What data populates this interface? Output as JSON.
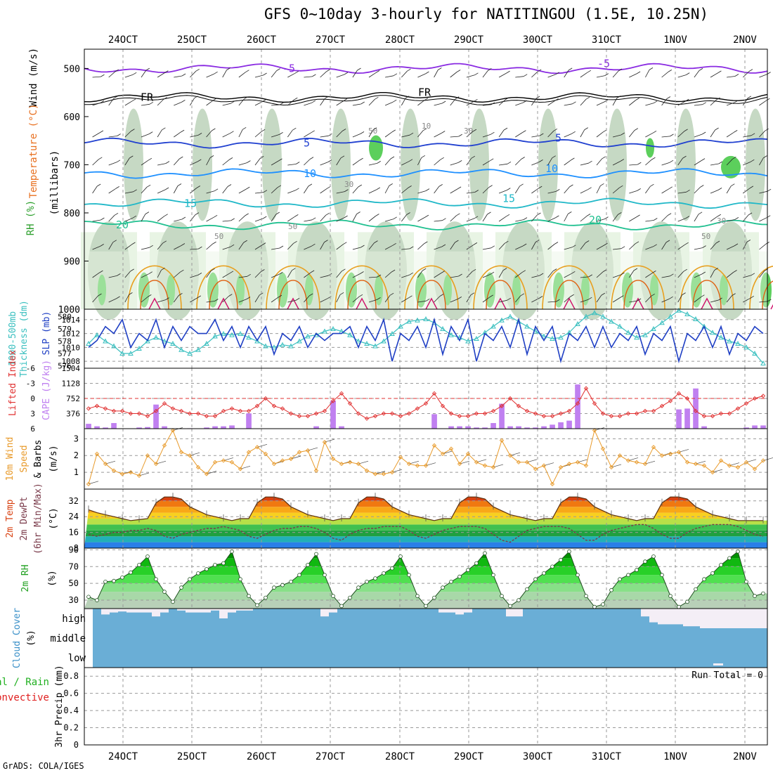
{
  "title": "GFS 0~10day 3-hourly for NATITINGOU (1.5E, 10.25N)",
  "credit": "GrADS: COLA/IGES",
  "date_labels": [
    "24OCT",
    "25OCT",
    "26OCT",
    "27OCT",
    "28OCT",
    "29OCT",
    "30OCT",
    "31OCT",
    "1NOV",
    "2NOV"
  ],
  "colors": {
    "rh_light": "#e8f4e4",
    "rh_mid": "#c6d9c4",
    "rh_dark": "#aec4ae",
    "rh_green": "#5ccf5c",
    "slp": "#1f3fc4",
    "thickness": "#3cc0c0",
    "lifted": "#e03030",
    "cape": "#c080f0",
    "wind10m": "#e89a2a",
    "cloud": "#6aaed6",
    "cloud_gap": "#f4eef6"
  },
  "chart_data": [
    {
      "id": "upper",
      "type": "heatmap",
      "ylabels": [
        "Wind (m/s)",
        "Temperature (°C)",
        "RH (%)",
        "(millibars)"
      ],
      "y_ticks": [
        500,
        600,
        700,
        800,
        900,
        1000
      ],
      "ylim": [
        460,
        1000
      ],
      "temperature_contours": [
        {
          "label": "-5",
          "pressure": 500,
          "color": "#8a2be2"
        },
        {
          "label": "FR",
          "pressure": 560,
          "color": "#000000"
        },
        {
          "label": "5",
          "pressure": 655,
          "color": "#2040d0"
        },
        {
          "label": "10",
          "pressure": 718,
          "color": "#1e90ff"
        },
        {
          "label": "15",
          "pressure": 780,
          "color": "#20b8c8"
        },
        {
          "label": "20",
          "pressure": 825,
          "color": "#20c090"
        }
      ],
      "rh_labels": [
        "50",
        "10",
        "30",
        "50",
        "50",
        "30",
        "30",
        "50"
      ]
    },
    {
      "id": "slp",
      "type": "line",
      "ylabels": [
        "1000-500mb",
        "Thickness (dm)",
        "SLP (mb)"
      ],
      "left_ticks": [
        576,
        577,
        578,
        579,
        580
      ],
      "right_ticks": [
        1008,
        1010,
        1012,
        1014
      ],
      "slp_ylim": [
        1007,
        1015.5
      ],
      "thick_ylim": [
        575.8,
        580.6
      ],
      "slp": [
        1010,
        1011,
        1013,
        1012,
        1014,
        1010,
        1012,
        1011,
        1014,
        1010,
        1013,
        1011,
        1013,
        1012,
        1012,
        1014,
        1011,
        1013,
        1010,
        1013,
        1011,
        1013,
        1009,
        1012,
        1011,
        1013,
        1010,
        1012,
        1011,
        1012,
        1012,
        1013,
        1010,
        1013,
        1011,
        1014,
        1008,
        1012,
        1011,
        1013,
        1010,
        1014,
        1009,
        1013,
        1011,
        1014,
        1008,
        1012,
        1011,
        1013,
        1010,
        1014,
        1009,
        1013,
        1011,
        1013,
        1008,
        1012,
        1011,
        1013,
        1010,
        1013,
        1010,
        1012,
        1011,
        1013,
        1009,
        1012,
        1011,
        1013,
        1008,
        1012,
        1011,
        1013,
        1010,
        1013,
        1009,
        1012,
        1011,
        1013,
        1012
      ],
      "thickness": [
        577.8,
        578.5,
        578.0,
        577.6,
        577.0,
        577.0,
        577.4,
        578.0,
        578.3,
        578.0,
        577.8,
        577.3,
        577.0,
        577.3,
        577.8,
        578.4,
        578.6,
        578.5,
        578.6,
        578.3,
        578.0,
        577.6,
        577.5,
        577.7,
        577.6,
        578.0,
        578.4,
        578.5,
        578.8,
        579.0,
        578.8,
        578.5,
        578.0,
        577.8,
        577.6,
        578.0,
        578.6,
        579.2,
        579.6,
        579.7,
        579.8,
        579.5,
        579.0,
        578.5,
        578.3,
        578.0,
        578.2,
        578.7,
        579.2,
        579.7,
        580.0,
        579.6,
        579.2,
        578.8,
        578.4,
        578.2,
        578.3,
        578.7,
        579.4,
        580.0,
        580.3,
        580.0,
        579.6,
        579.2,
        578.7,
        578.3,
        578.5,
        579.0,
        579.5,
        580.0,
        580.5,
        580.2,
        579.8,
        579.2,
        578.7,
        578.3,
        578.0,
        577.8,
        577.5,
        577.0,
        576.2
      ]
    },
    {
      "id": "cape",
      "type": "bar",
      "ylabels": [
        "Lifted Index",
        "CAPE (J/kg)"
      ],
      "left_ticks": [
        "-6",
        "-3",
        "0",
        "3",
        "6"
      ],
      "right_ticks": [
        "1504",
        "1128",
        "752",
        "376"
      ],
      "cape_ylim": [
        0,
        1504
      ],
      "li_ylim": [
        -6,
        6
      ],
      "cape": [
        120,
        60,
        30,
        140,
        0,
        0,
        30,
        40,
        600,
        60,
        0,
        0,
        10,
        0,
        30,
        60,
        60,
        80,
        0,
        380,
        0,
        0,
        0,
        0,
        0,
        0,
        0,
        60,
        0,
        700,
        60,
        0,
        0,
        0,
        0,
        0,
        0,
        0,
        0,
        0,
        0,
        360,
        0,
        60,
        60,
        60,
        30,
        30,
        140,
        620,
        60,
        60,
        30,
        30,
        60,
        100,
        160,
        200,
        1100,
        0,
        0,
        0,
        0,
        0,
        0,
        0,
        0,
        0,
        0,
        0,
        480,
        500,
        1000,
        60,
        0,
        0,
        0,
        0,
        30,
        80,
        80
      ],
      "lifted_index": [
        2.0,
        1.5,
        2.0,
        2.5,
        2.5,
        3.0,
        3.0,
        3.5,
        2.5,
        1.0,
        2.0,
        2.5,
        3.0,
        3.0,
        3.5,
        3.5,
        2.5,
        2.0,
        2.5,
        2.5,
        1.5,
        0,
        1.5,
        2.0,
        3.0,
        3.5,
        3.5,
        3.0,
        2.5,
        0.5,
        -1.0,
        1.0,
        3.0,
        4.0,
        3.5,
        3.0,
        3.0,
        3.5,
        3.0,
        2.0,
        1.0,
        -1.0,
        1.5,
        3.0,
        3.5,
        3.5,
        3.0,
        3.0,
        2.5,
        1.5,
        0,
        1.5,
        2.5,
        3.0,
        3.5,
        3.5,
        3.0,
        2.5,
        1.0,
        -2.0,
        1.0,
        3.0,
        3.5,
        3.5,
        3.0,
        3.0,
        2.5,
        2.5,
        1.5,
        0.5,
        -1.0,
        0,
        2.5,
        3.5,
        3.5,
        3.0,
        3.0,
        2.0,
        1.0,
        0,
        -0.5
      ],
      "li_reference": 0
    },
    {
      "id": "wind10m",
      "type": "line",
      "ylabels": [
        "10m Wind",
        "Speed",
        "& Barbs",
        "(m/s)"
      ],
      "y_ticks": [
        1,
        2,
        3
      ],
      "ylim": [
        0,
        3.6
      ],
      "speed": [
        0.3,
        2.1,
        1.5,
        1.1,
        0.9,
        1.0,
        0.8,
        2.0,
        1.5,
        2.6,
        3.5,
        2.2,
        2.0,
        1.3,
        0.9,
        1.6,
        1.7,
        1.6,
        1.2,
        2.2,
        2.5,
        2.1,
        1.5,
        1.7,
        1.8,
        2.2,
        2.3,
        1.1,
        2.8,
        1.8,
        1.5,
        1.6,
        1.5,
        1.1,
        0.9,
        0.9,
        1.0,
        1.9,
        1.5,
        1.4,
        1.4,
        2.6,
        2.1,
        2.4,
        1.5,
        2.1,
        1.6,
        1.4,
        1.3,
        2.9,
        2.0,
        1.6,
        1.6,
        1.2,
        1.4,
        0.3,
        1.3,
        1.5,
        1.6,
        1.4,
        3.5,
        2.4,
        1.3,
        2.0,
        1.7,
        1.6,
        1.5,
        2.5,
        2.0,
        2.1,
        2.2,
        1.6,
        1.5,
        1.4,
        1.0,
        1.7,
        1.4,
        1.3,
        1.6,
        1.2,
        1.7
      ]
    },
    {
      "id": "temp2m",
      "type": "area",
      "ylabels": [
        "2m Temp",
        "2m DewPt",
        "(6hr Min/Max)",
        "(°C)"
      ],
      "y_ticks": [
        8,
        16,
        24,
        32
      ],
      "ylim": [
        8,
        38
      ],
      "temperature": [
        27.5,
        26,
        25,
        24,
        23,
        22,
        22.5,
        23,
        31,
        34,
        34,
        33,
        29,
        27,
        25,
        24,
        23,
        22,
        23,
        23,
        31,
        34,
        34,
        33,
        29,
        27,
        25,
        24,
        23,
        22,
        23,
        23,
        31,
        34,
        34,
        33,
        29,
        27,
        25,
        24,
        23,
        22,
        23,
        23,
        31,
        34,
        34,
        33,
        29,
        27,
        25,
        24,
        23,
        22,
        23,
        23,
        31,
        34,
        34,
        33,
        29,
        27,
        25,
        24,
        23,
        22,
        23,
        23,
        31,
        34,
        34,
        33,
        29,
        27,
        25,
        24,
        23,
        22,
        22,
        22,
        22
      ],
      "dewpoint": [
        15,
        14,
        15,
        16,
        16,
        17,
        17,
        18,
        17,
        14,
        13,
        15,
        16,
        17,
        18,
        18,
        19,
        18,
        17,
        14,
        13,
        15,
        17,
        18,
        18,
        19,
        19,
        18,
        16,
        13,
        12,
        15,
        17,
        18,
        18,
        19,
        19,
        19,
        17,
        14,
        13,
        15,
        17,
        18,
        19,
        19,
        19,
        18,
        15,
        12,
        11,
        14,
        17,
        18,
        19,
        19,
        19,
        18,
        15,
        12,
        12,
        15,
        17,
        18,
        19,
        20,
        20,
        18,
        15,
        13,
        13,
        16,
        18,
        19,
        20,
        20,
        20,
        19,
        17,
        15,
        14
      ]
    },
    {
      "id": "rh2m",
      "type": "area",
      "ylabels": [
        "2m RH",
        "(%)"
      ],
      "y_ticks": [
        30,
        50,
        70,
        90
      ],
      "ylim": [
        20,
        92
      ],
      "rh": [
        34,
        30,
        52,
        53,
        57,
        63,
        72,
        82,
        55,
        40,
        28,
        45,
        55,
        62,
        67,
        72,
        74,
        88,
        55,
        35,
        24,
        33,
        45,
        48,
        52,
        60,
        72,
        85,
        60,
        35,
        23,
        33,
        45,
        52,
        56,
        62,
        68,
        82,
        60,
        35,
        23,
        33,
        45,
        52,
        58,
        66,
        74,
        86,
        60,
        35,
        23,
        30,
        43,
        55,
        62,
        70,
        78,
        88,
        60,
        35,
        22,
        25,
        42,
        55,
        60,
        66,
        76,
        82,
        60,
        35,
        22,
        28,
        43,
        55,
        62,
        72,
        80,
        88,
        52,
        35,
        38
      ]
    },
    {
      "id": "cloud",
      "type": "heatmap",
      "ylabels": [
        "Cloud Cover",
        "(%)"
      ],
      "levels": [
        "high",
        "middle",
        "low"
      ],
      "high": [
        92,
        100,
        70,
        80,
        85,
        80,
        80,
        80,
        60,
        80,
        100,
        90,
        80,
        80,
        80,
        90,
        50,
        80,
        90,
        90,
        100,
        100,
        100,
        100,
        100,
        100,
        100,
        100,
        60,
        80,
        100,
        100,
        100,
        100,
        100,
        100,
        100,
        100,
        100,
        100,
        100,
        100,
        80,
        80,
        70,
        80,
        100,
        100,
        100,
        100,
        60,
        60,
        100,
        100,
        100,
        100,
        100,
        100,
        100,
        100,
        100,
        100,
        100,
        100,
        100,
        100,
        60,
        30,
        20,
        20,
        20,
        10,
        10,
        0,
        0,
        0,
        0,
        0,
        0,
        0,
        0
      ]
    },
    {
      "id": "precip",
      "type": "bar",
      "ylabels": [
        "Total / Rain",
        "Convective",
        "3hr Precip (mm)"
      ],
      "y_ticks": [
        0,
        0.2,
        0.4,
        0.6,
        0.8
      ],
      "ylim": [
        0,
        0.9
      ],
      "run_total_label": "Run Total = 0",
      "precip": []
    }
  ]
}
